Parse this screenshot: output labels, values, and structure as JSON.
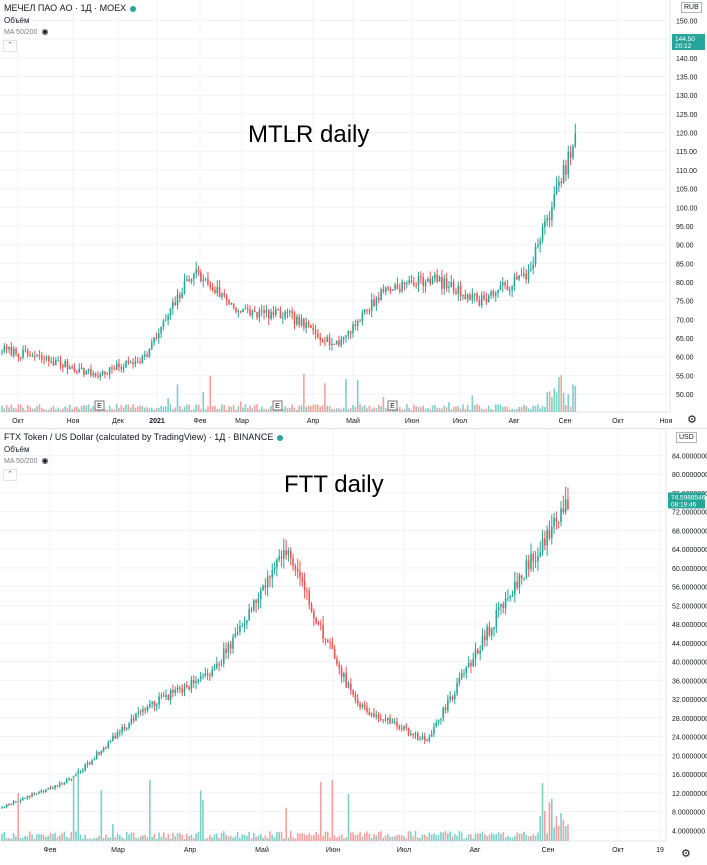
{
  "colors": {
    "up": "#26a69a",
    "down": "#ef5350",
    "vol_up": "#7fcfc8",
    "vol_down": "#f4a09d",
    "grid": "#f0f3fa",
    "text": "#131722"
  },
  "top": {
    "legend": "МЕЧЕЛ ПАО АО · 1Д · MOEX",
    "volume_label": "Объём",
    "ma_label": "MA 50/200",
    "overlay_text": "MTLR daily",
    "currency": "RUB",
    "price_label": "144.50",
    "time_label": "20:12",
    "earnings_marker": "E",
    "x_ticks": [
      "Окт",
      "Ноя",
      "Дек",
      "2021",
      "Фев",
      "Мар",
      "Апр",
      "Май",
      "Июн",
      "Июл",
      "Авг",
      "Сен",
      "Окт",
      "Ноя"
    ],
    "y_ticks": [
      "150.00",
      "145.00",
      "140.00",
      "135.00",
      "130.00",
      "125.00",
      "120.00",
      "115.00",
      "110.00",
      "105.00",
      "100.00",
      "95.00",
      "90.00",
      "85.00",
      "80.00",
      "75.00",
      "70.00",
      "65.00",
      "60.00",
      "55.00",
      "50.00"
    ]
  },
  "bottom": {
    "legend": "FTX Token / US Dollar (calculated by TradingView) · 1Д · BINANCE",
    "volume_label": "Объём",
    "ma_label": "MA 50/200",
    "overlay_text": "FTT daily",
    "currency": "USD",
    "price_label": "74.5988546",
    "time_label": "08:19:46",
    "x_ticks": [
      "Фев",
      "Мар",
      "Апр",
      "Май",
      "Июн",
      "Июл",
      "Авг",
      "Сен",
      "Окт",
      "19"
    ],
    "y_ticks": [
      "84.0000000",
      "80.0000000",
      "76.0000000",
      "72.0000000",
      "68.0000000",
      "64.0000000",
      "60.0000000",
      "56.0000000",
      "52.0000000",
      "48.0000000",
      "44.0000000",
      "40.0000000",
      "36.0000000",
      "32.0000000",
      "28.0000000",
      "24.0000000",
      "20.0000000",
      "16.0000000",
      "12.0000000",
      "8.0000000",
      "4.0000000"
    ]
  },
  "chart_data": [
    {
      "type": "line",
      "title": "МЕЧЕЛ ПАО АО · 1Д · MOEX",
      "ylim": [
        46,
        152
      ],
      "x": [
        "Сен",
        "Окт",
        "Ноя",
        "Дек",
        "Янв",
        "Фев",
        "Мар",
        "Апр",
        "Май",
        "Июн",
        "Июл",
        "Авг",
        "Сен"
      ],
      "series": [
        {
          "values": [
            62,
            59,
            55,
            60,
            83,
            72,
            71,
            63,
            78,
            81,
            75,
            82,
            118
          ]
        }
      ]
    },
    {
      "type": "line",
      "title": "FTX Token / US Dollar (calculated by TradingView) · 1Д · BINANCE",
      "ylim": [
        0,
        86
      ],
      "x": [
        "Янв",
        "Фев",
        "Мар",
        "Апр",
        "Май",
        "Июн",
        "Июл",
        "Авг",
        "Сен"
      ],
      "series": [
        {
          "values": [
            9,
            15,
            30,
            38,
            64,
            31,
            23,
            50,
            74
          ]
        }
      ]
    }
  ]
}
